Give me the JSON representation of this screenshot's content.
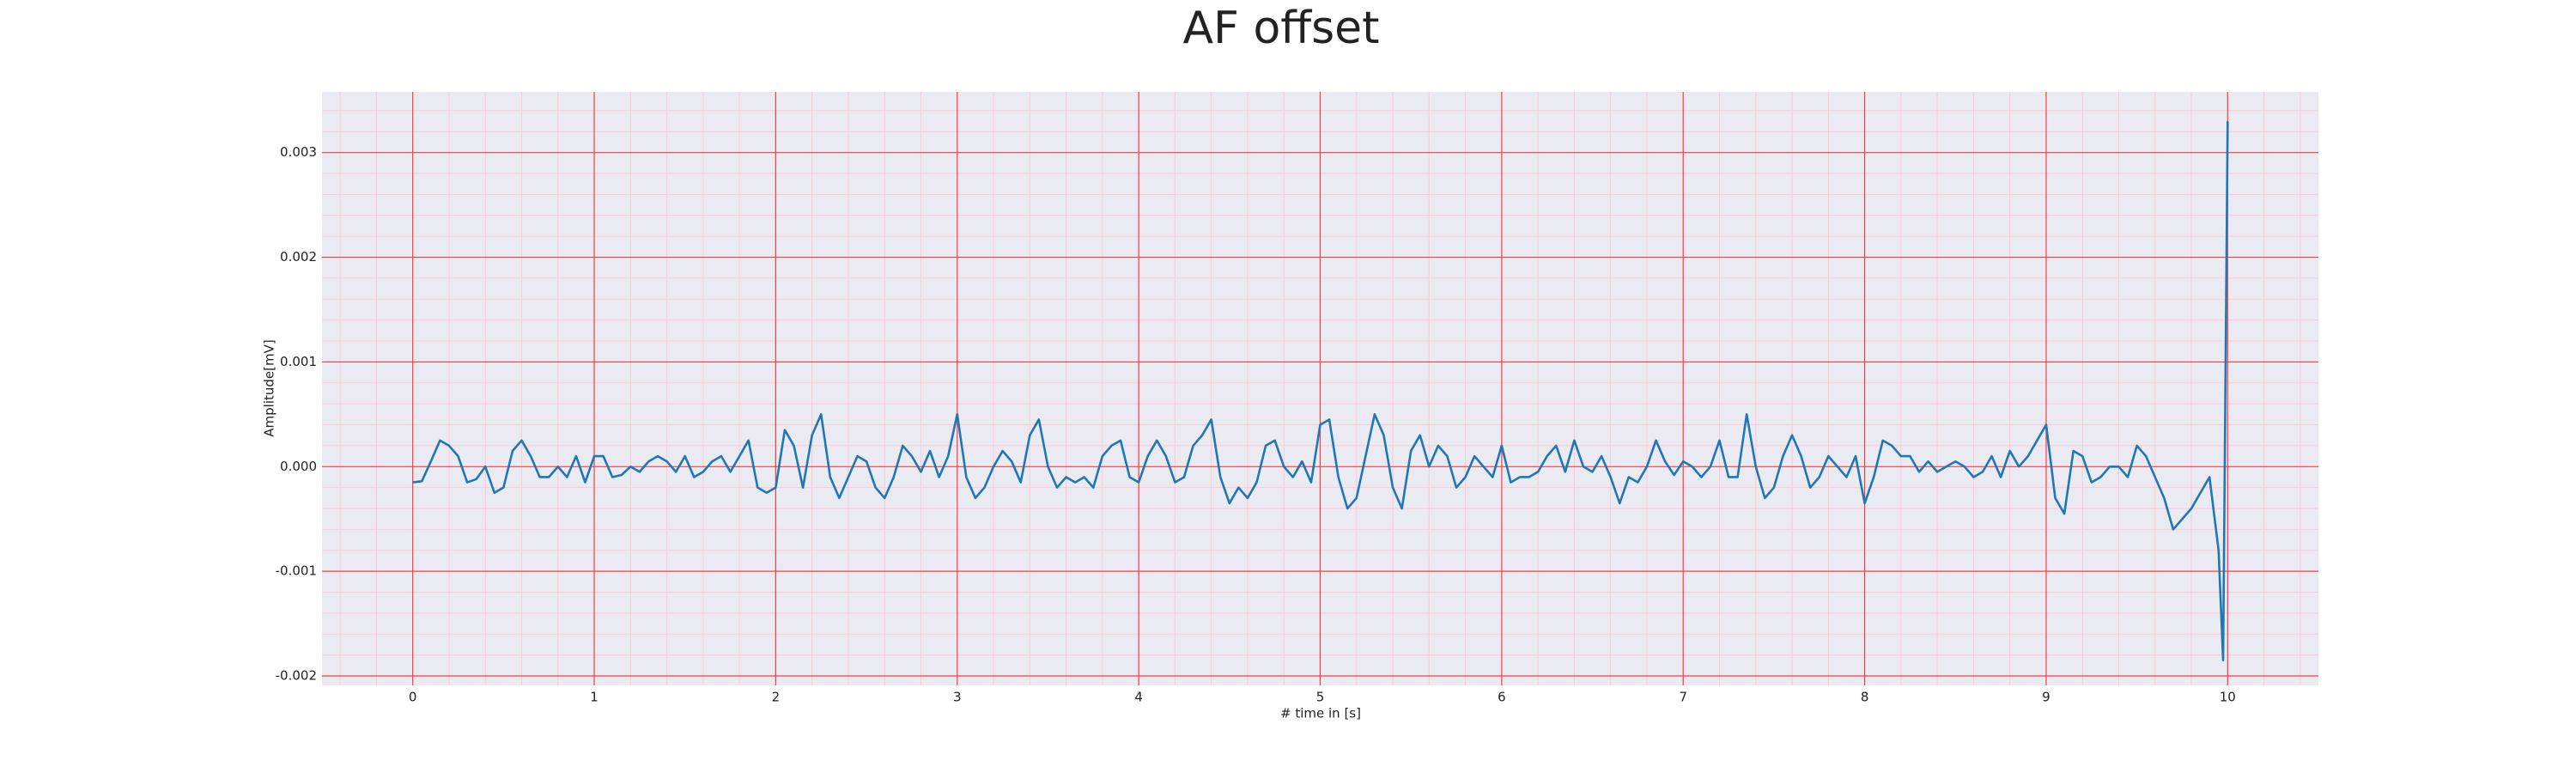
{
  "chart_data": {
    "type": "line",
    "title": "AF offset",
    "x_label": "# time in [s]",
    "y_label": "Amplitude[mV]",
    "grid": true,
    "minor_grid": true,
    "xlim": [
      -0.5,
      10.5
    ],
    "ylim": [
      -0.00209,
      0.00358
    ],
    "xticks": [
      0,
      1,
      2,
      3,
      4,
      5,
      6,
      7,
      8,
      9,
      10
    ],
    "yticks": [
      {
        "value": -0.002,
        "label": "-0.002"
      },
      {
        "value": -0.001,
        "label": "-0.001"
      },
      {
        "value": 0,
        "label": "0.000"
      },
      {
        "value": 0.001,
        "label": "0.001"
      },
      {
        "value": 0.002,
        "label": "0.002"
      },
      {
        "value": 0.003,
        "label": "0.003"
      }
    ],
    "x": [
      0,
      0.05,
      0.1,
      0.15,
      0.2,
      0.25,
      0.3,
      0.35,
      0.4,
      0.45,
      0.5,
      0.55,
      0.6,
      0.65,
      0.7,
      0.75,
      0.8,
      0.85,
      0.9,
      0.95,
      1,
      1.05,
      1.1,
      1.15,
      1.2,
      1.25,
      1.3,
      1.35,
      1.4,
      1.45,
      1.5,
      1.55,
      1.6,
      1.65,
      1.7,
      1.75,
      1.8,
      1.85,
      1.9,
      1.95,
      2,
      2.05,
      2.1,
      2.15,
      2.2,
      2.25,
      2.3,
      2.35,
      2.4,
      2.45,
      2.5,
      2.55,
      2.6,
      2.65,
      2.7,
      2.75,
      2.8,
      2.85,
      2.9,
      2.95,
      3,
      3.05,
      3.1,
      3.15,
      3.2,
      3.25,
      3.3,
      3.35,
      3.4,
      3.45,
      3.5,
      3.55,
      3.6,
      3.65,
      3.7,
      3.75,
      3.8,
      3.85,
      3.9,
      3.95,
      4,
      4.05,
      4.1,
      4.15,
      4.2,
      4.25,
      4.3,
      4.35,
      4.4,
      4.45,
      4.5,
      4.55,
      4.6,
      4.65,
      4.7,
      4.75,
      4.8,
      4.85,
      4.9,
      4.95,
      5,
      5.05,
      5.1,
      5.15,
      5.2,
      5.25,
      5.3,
      5.35,
      5.4,
      5.45,
      5.5,
      5.55,
      5.6,
      5.65,
      5.7,
      5.75,
      5.8,
      5.85,
      5.9,
      5.95,
      6,
      6.05,
      6.1,
      6.15,
      6.2,
      6.25,
      6.3,
      6.35,
      6.4,
      6.45,
      6.5,
      6.55,
      6.6,
      6.65,
      6.7,
      6.75,
      6.8,
      6.85,
      6.9,
      6.95,
      7,
      7.05,
      7.1,
      7.15,
      7.2,
      7.25,
      7.3,
      7.35,
      7.4,
      7.45,
      7.5,
      7.55,
      7.6,
      7.65,
      7.7,
      7.75,
      7.8,
      7.85,
      7.9,
      7.95,
      8,
      8.05,
      8.1,
      8.15,
      8.2,
      8.25,
      8.3,
      8.35,
      8.4,
      8.45,
      8.5,
      8.55,
      8.6,
      8.65,
      8.7,
      8.75,
      8.8,
      8.85,
      8.9,
      8.95,
      9,
      9.05,
      9.1,
      9.15,
      9.2,
      9.25,
      9.3,
      9.35,
      9.4,
      9.45,
      9.5,
      9.55,
      9.6,
      9.65,
      9.7,
      9.75,
      9.8,
      9.85,
      9.9,
      9.95,
      9.975,
      10
    ],
    "series": [
      {
        "color": "#1f77b4",
        "values": [
          -0.00015,
          -0.00014,
          5e-05,
          0.00025,
          0.0002,
          0.0001,
          -0.00015,
          -0.00012,
          0,
          -0.00025,
          -0.0002,
          0.00015,
          0.00025,
          0.0001,
          -0.0001,
          -0.0001,
          0,
          -0.0001,
          0.0001,
          -0.00015,
          0.0001,
          0.0001,
          -0.0001,
          -8e-05,
          0,
          -5e-05,
          5e-05,
          0.0001,
          5e-05,
          -5e-05,
          0.0001,
          -0.0001,
          -5e-05,
          5e-05,
          0.0001,
          -5e-05,
          0.0001,
          0.00025,
          -0.0002,
          -0.00025,
          -0.0002,
          0.00035,
          0.0002,
          -0.0002,
          0.0003,
          0.0005,
          -0.0001,
          -0.0003,
          -0.0001,
          0.0001,
          5e-05,
          -0.0002,
          -0.0003,
          -0.0001,
          0.0002,
          0.0001,
          -5e-05,
          0.00015,
          -0.0001,
          0.0001,
          0.0005,
          -0.0001,
          -0.0003,
          -0.0002,
          0,
          0.00015,
          5e-05,
          -0.00015,
          0.0003,
          0.00045,
          0,
          -0.0002,
          -0.0001,
          -0.00015,
          -0.0001,
          -0.0002,
          0.0001,
          0.0002,
          0.00025,
          -0.0001,
          -0.00015,
          0.0001,
          0.00025,
          0.0001,
          -0.00015,
          -0.0001,
          0.0002,
          0.0003,
          0.00045,
          -0.0001,
          -0.00035,
          -0.0002,
          -0.0003,
          -0.00015,
          0.0002,
          0.00025,
          0,
          -0.0001,
          5e-05,
          -0.00015,
          0.0004,
          0.00045,
          -0.0001,
          -0.0004,
          -0.0003,
          0.0001,
          0.0005,
          0.0003,
          -0.0002,
          -0.0004,
          0.00015,
          0.0003,
          0,
          0.0002,
          0.0001,
          -0.0002,
          -0.0001,
          0.0001,
          0,
          -0.0001,
          0.0002,
          -0.00015,
          -0.0001,
          -0.0001,
          -5e-05,
          0.0001,
          0.0002,
          -5e-05,
          0.00025,
          0,
          -5e-05,
          0.0001,
          -0.0001,
          -0.00035,
          -0.0001,
          -0.00015,
          0,
          0.00025,
          5e-05,
          -8e-05,
          5e-05,
          0,
          -0.0001,
          0,
          0.00025,
          -0.0001,
          -0.0001,
          0.0005,
          0,
          -0.0003,
          -0.0002,
          0.0001,
          0.0003,
          0.0001,
          -0.0002,
          -0.0001,
          0.0001,
          0,
          -0.0001,
          0.0001,
          -0.00035,
          -0.0001,
          0.00025,
          0.0002,
          0.0001,
          0.0001,
          -5e-05,
          5e-05,
          -5e-05,
          0,
          5e-05,
          0,
          -0.0001,
          -5e-05,
          0.0001,
          -0.0001,
          0.00015,
          0,
          0.0001,
          0.00025,
          0.0004,
          -0.0003,
          -0.00045,
          0.00015,
          0.0001,
          -0.00015,
          -0.0001,
          0,
          0,
          -0.0001,
          0.0002,
          0.0001,
          -0.0001,
          -0.0003,
          -0.0006,
          -0.0005,
          -0.0004,
          -0.00025,
          -0.0001,
          -0.0008,
          -0.00185,
          0.0033
        ]
      }
    ]
  }
}
